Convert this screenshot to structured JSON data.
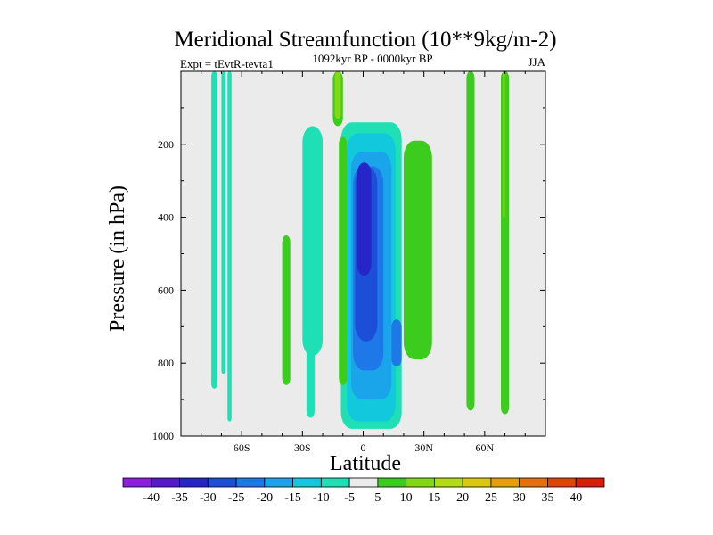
{
  "chart_data": {
    "type": "contour",
    "title": "Meridional Streamfunction (10**9kg/m-2)",
    "left_subtitle": "Expt = tEvtR-tevta1",
    "center_subtitle": "1092kyr BP - 0000kyr BP",
    "right_subtitle": "JJA",
    "xlabel": "Latitude",
    "ylabel": "Pressure (in hPa)",
    "xlim": [
      -90,
      90
    ],
    "ylim": [
      0,
      1000
    ],
    "y_inverted": true,
    "x_ticks": [
      {
        "value": -60,
        "label": "60S"
      },
      {
        "value": -30,
        "label": "30S"
      },
      {
        "value": 0,
        "label": "0"
      },
      {
        "value": 30,
        "label": "30N"
      },
      {
        "value": 60,
        "label": "60N"
      }
    ],
    "y_ticks": [
      {
        "value": 200,
        "label": "200"
      },
      {
        "value": 400,
        "label": "400"
      },
      {
        "value": 600,
        "label": "600"
      },
      {
        "value": 800,
        "label": "800"
      },
      {
        "value": 1000,
        "label": "1000"
      }
    ],
    "contour_levels": [
      -40,
      -35,
      -30,
      -25,
      -20,
      -15,
      -10,
      -5,
      5,
      10,
      15,
      20,
      25,
      30,
      35,
      40
    ],
    "colorbar_colors": [
      "#8a1ee0",
      "#5518cc",
      "#2626c8",
      "#1c4ed8",
      "#1e78e8",
      "#1aa4ea",
      "#12c8dc",
      "#1ee0b4",
      "#ebebeb",
      "#3ccc1e",
      "#84d812",
      "#b4dc12",
      "#dcc80a",
      "#e4a00a",
      "#e4720a",
      "#e0440a",
      "#d81e0a"
    ],
    "missing_color": "#ebebeb",
    "regions": [
      {
        "level": -5,
        "lat": [
          -75,
          -72
        ],
        "p": [
          0,
          870
        ],
        "xw": [
          0,
          0
        ]
      },
      {
        "level": -5,
        "lat": [
          -70,
          -68
        ],
        "p": [
          0,
          830
        ],
        "xw": [
          0,
          0
        ]
      },
      {
        "level": -5,
        "lat": [
          -67,
          -65
        ],
        "p": [
          0,
          960
        ],
        "xw": [
          0,
          0
        ]
      },
      {
        "level": -5,
        "lat": [
          -30,
          -20
        ],
        "p": [
          150,
          780
        ],
        "xw": [
          0,
          0
        ]
      },
      {
        "level": -5,
        "lat": [
          -28,
          -24
        ],
        "p": [
          640,
          950
        ],
        "xw": [
          0,
          0
        ]
      },
      {
        "level": -5,
        "lat": [
          -11,
          19
        ],
        "p": [
          140,
          980
        ],
        "xw": [
          0,
          0
        ]
      },
      {
        "level": -10,
        "lat": [
          -8,
          16
        ],
        "p": [
          170,
          960
        ],
        "xw": [
          0,
          0
        ]
      },
      {
        "level": -15,
        "lat": [
          -6,
          14
        ],
        "p": [
          220,
          900
        ],
        "xw": [
          0,
          0
        ]
      },
      {
        "level": -20,
        "lat": [
          -5,
          10
        ],
        "p": [
          260,
          820
        ],
        "xw": [
          0,
          0
        ]
      },
      {
        "level": -20,
        "lat": [
          14,
          19
        ],
        "p": [
          680,
          810
        ],
        "xw": [
          0,
          0
        ]
      },
      {
        "level": -25,
        "lat": [
          -4,
          7
        ],
        "p": [
          260,
          740
        ],
        "xw": [
          0,
          0
        ]
      },
      {
        "level": -30,
        "lat": [
          -3,
          4
        ],
        "p": [
          250,
          560
        ],
        "xw": [
          0,
          0
        ]
      },
      {
        "level": 5,
        "lat": [
          -15,
          -10
        ],
        "p": [
          0,
          150
        ],
        "xw": [
          0,
          0
        ]
      },
      {
        "level": 10,
        "lat": [
          -14,
          -11
        ],
        "p": [
          0,
          130
        ],
        "xw": [
          0,
          0
        ]
      },
      {
        "level": 5,
        "lat": [
          -40,
          -36
        ],
        "p": [
          450,
          860
        ],
        "xw": [
          0,
          0
        ]
      },
      {
        "level": 5,
        "lat": [
          -12,
          -8
        ],
        "p": [
          180,
          860
        ],
        "xw": [
          0,
          0
        ]
      },
      {
        "level": 5,
        "lat": [
          20,
          34
        ],
        "p": [
          190,
          790
        ],
        "xw": [
          0,
          0
        ]
      },
      {
        "level": 5,
        "lat": [
          51,
          55
        ],
        "p": [
          0,
          930
        ],
        "xw": [
          0,
          0
        ]
      },
      {
        "level": 5,
        "lat": [
          68,
          72
        ],
        "p": [
          0,
          940
        ],
        "xw": [
          0,
          0
        ]
      },
      {
        "level": 10,
        "lat": [
          69,
          70
        ],
        "p": [
          0,
          400
        ],
        "xw": [
          0,
          0
        ]
      }
    ],
    "colorbar_position": "bottom"
  }
}
